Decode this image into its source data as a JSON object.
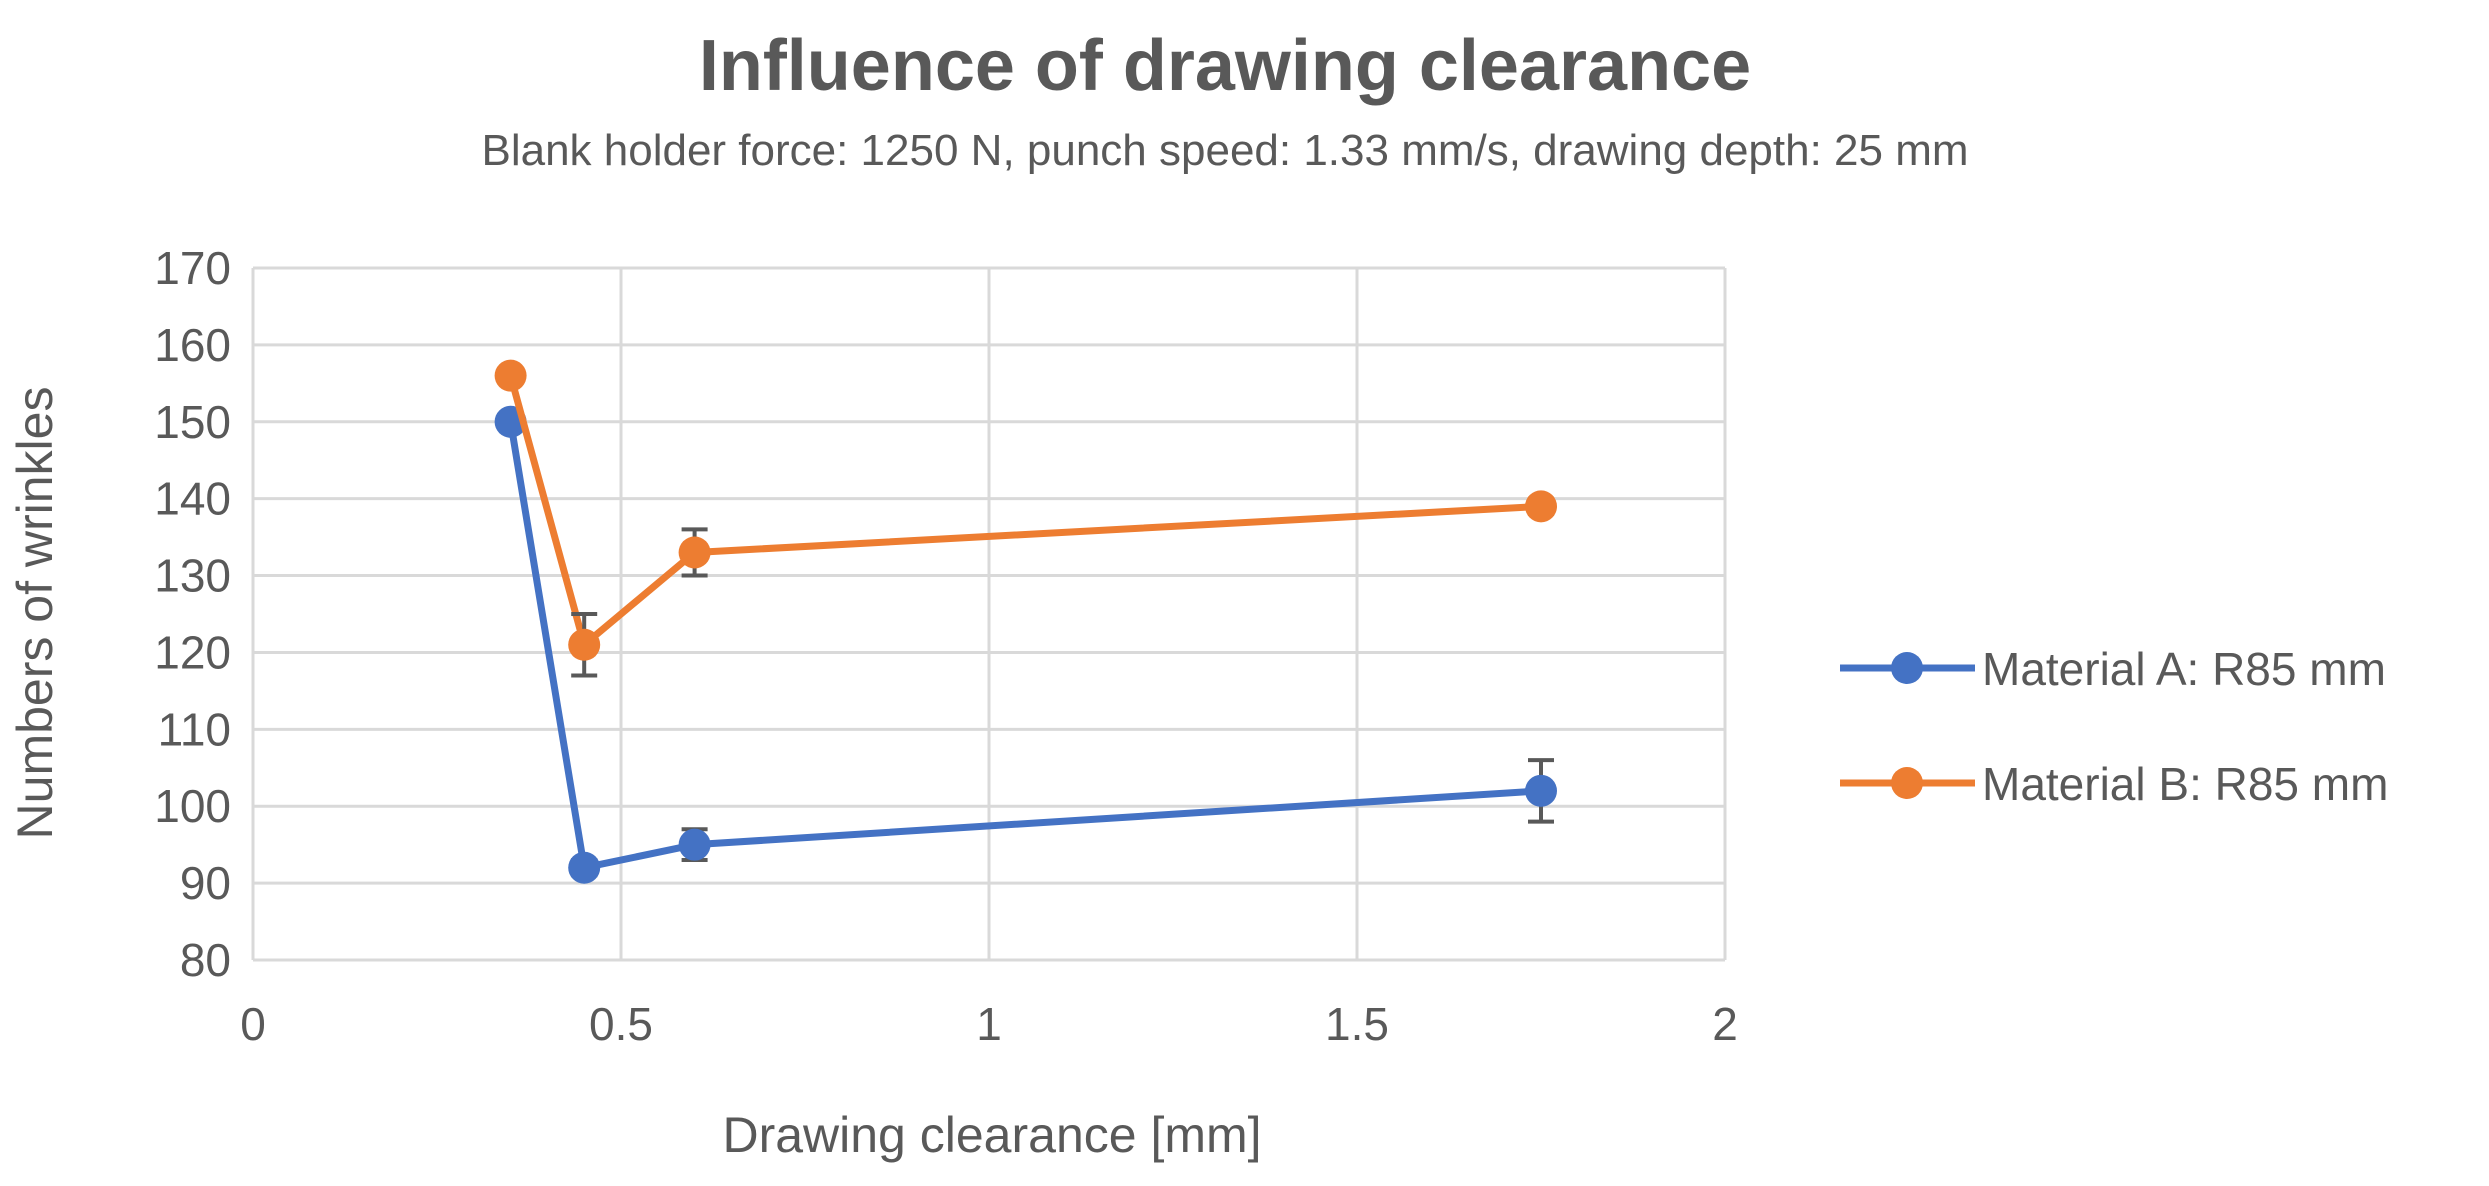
{
  "chart_data": {
    "type": "scatter",
    "title": "Influence of drawing clearance",
    "subtitle": "Blank holder force: 1250 N, punch speed: 1.33 mm/s, drawing depth: 25 mm",
    "xlabel": "Drawing clearance [mm]",
    "ylabel": "Numbers of wrinkles",
    "xlim": [
      0,
      2
    ],
    "ylim": [
      80,
      170
    ],
    "xticks": [
      0,
      0.5,
      1,
      1.5,
      2
    ],
    "xtick_labels": [
      "0",
      "0.5",
      "1",
      "1.5",
      "2"
    ],
    "yticks": [
      80,
      90,
      100,
      110,
      120,
      130,
      140,
      150,
      160,
      170
    ],
    "grid": true,
    "legend_position": "right",
    "series": [
      {
        "name": "Material A: R85 mm",
        "color": "#4472C4",
        "x": [
          0.35,
          0.45,
          0.6,
          1.75
        ],
        "y": [
          150,
          92,
          95,
          102
        ],
        "error": [
          0,
          1,
          2,
          4
        ]
      },
      {
        "name": "Material B: R85 mm",
        "color": "#ED7D31",
        "x": [
          0.35,
          0.45,
          0.6,
          1.75
        ],
        "y": [
          156,
          121,
          133,
          139
        ],
        "error": [
          0,
          4,
          3,
          1
        ]
      }
    ]
  }
}
